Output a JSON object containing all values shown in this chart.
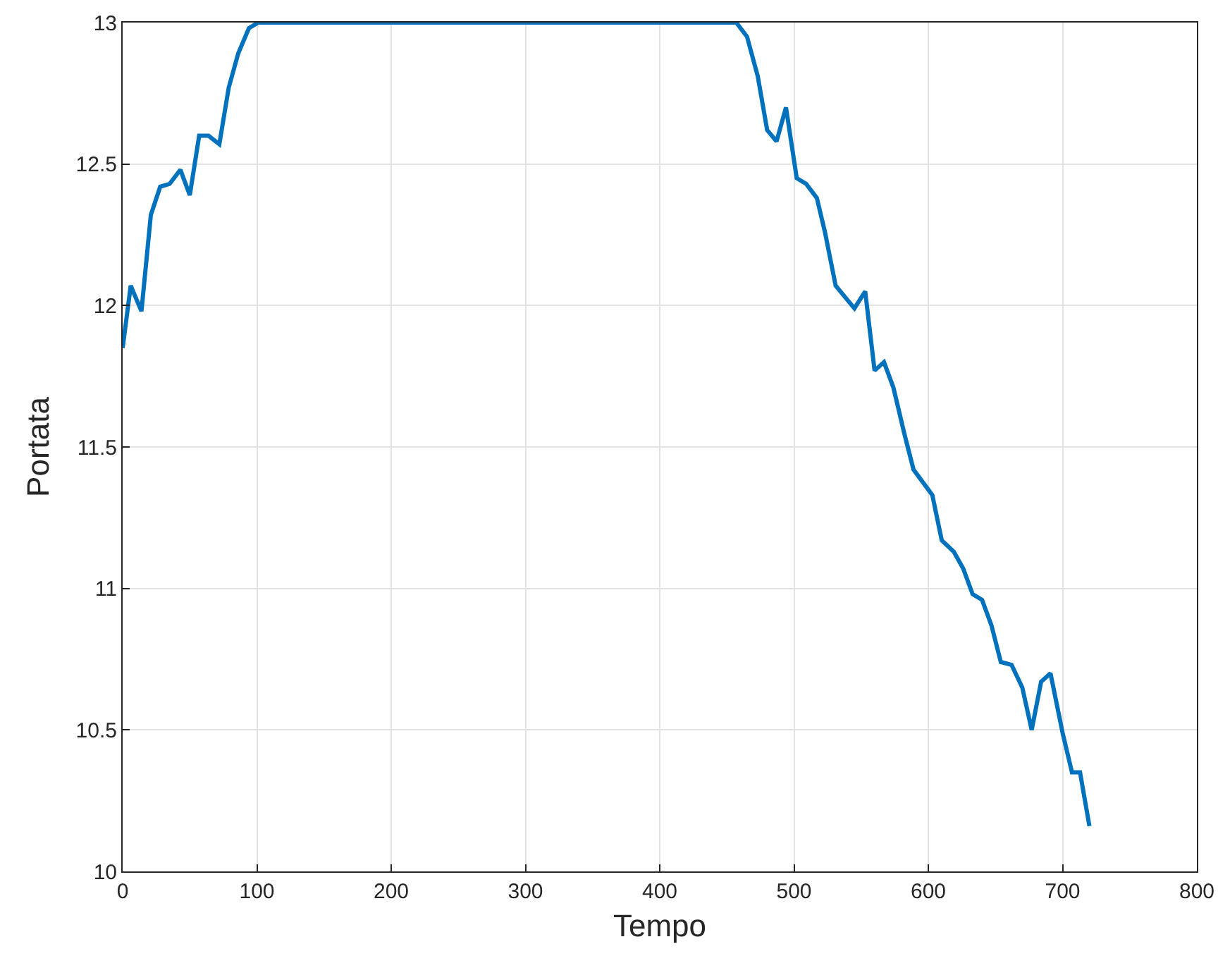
{
  "chart_data": {
    "type": "line",
    "xlabel": "Tempo",
    "ylabel": "Portata",
    "xlim": [
      0,
      800
    ],
    "xticks": [
      0,
      100,
      200,
      300,
      400,
      500,
      600,
      700,
      800
    ],
    "ylim": [
      10,
      13
    ],
    "yticks": [
      10,
      10.5,
      11,
      11.5,
      12,
      12.5,
      13
    ],
    "grid": true,
    "marker": "none",
    "line_style": "solid",
    "series": [
      {
        "color": "#0072bd",
        "x": [
          0,
          6,
          14,
          21,
          28,
          35,
          43,
          50,
          57,
          64,
          72,
          79,
          86,
          94,
          101,
          457,
          465,
          473,
          480,
          487,
          494,
          502,
          509,
          517,
          523,
          531,
          538,
          545,
          553,
          560,
          567,
          574,
          582,
          589,
          603,
          610,
          619,
          626,
          633,
          640,
          647,
          654,
          662,
          670,
          677,
          684,
          691,
          700,
          707,
          713,
          720
        ],
        "values": [
          11.85,
          12.07,
          11.98,
          12.32,
          12.42,
          12.43,
          12.48,
          12.39,
          12.6,
          12.6,
          12.57,
          12.77,
          12.89,
          12.98,
          13,
          13,
          12.95,
          12.81,
          12.62,
          12.58,
          12.7,
          12.45,
          12.43,
          12.38,
          12.26,
          12.07,
          12.03,
          11.99,
          12.05,
          11.77,
          11.8,
          11.71,
          11.55,
          11.42,
          11.33,
          11.17,
          11.13,
          11.07,
          10.98,
          10.96,
          10.87,
          10.74,
          10.73,
          10.65,
          10.5,
          10.67,
          10.7,
          10.49,
          10.35,
          10.35,
          10.16
        ]
      }
    ]
  }
}
